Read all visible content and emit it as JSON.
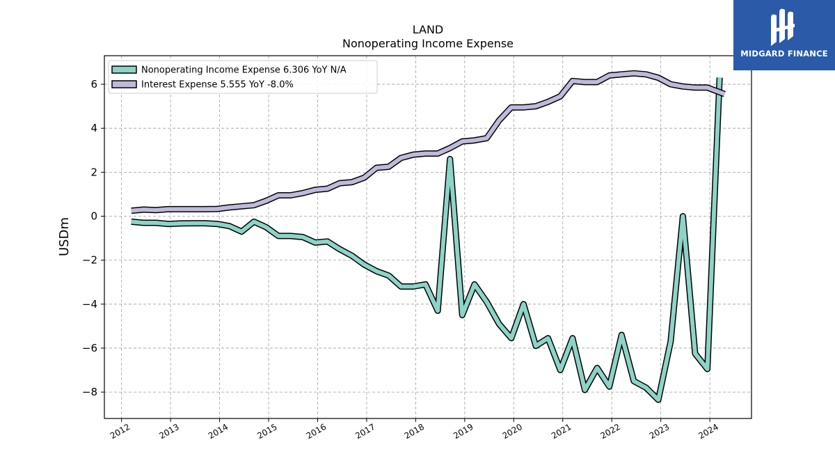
{
  "chart_data": {
    "type": "line",
    "title": "LAND",
    "subtitle": "Nonoperating Income Expense",
    "xlabel": "",
    "ylabel": "USDm",
    "xlim": [
      2011.65,
      2024.85
    ],
    "ylim": [
      -9.2,
      7.3
    ],
    "x_ticks": [
      "2012",
      "2013",
      "2014",
      "2015",
      "2016",
      "2017",
      "2018",
      "2019",
      "2020",
      "2021",
      "2022",
      "2023",
      "2024"
    ],
    "y_ticks": [
      -8,
      -6,
      -4,
      -2,
      0,
      2,
      4,
      6
    ],
    "y_tick_labels": [
      "−8",
      "−6",
      "−4",
      "−2",
      "0",
      "2",
      "4",
      "6"
    ],
    "grid": true,
    "legend_placement": "top-left",
    "series": [
      {
        "name": "Nonoperating Income Expense  6.306 YoY N/A",
        "color": "#8dd3c7",
        "x": [
          2012.2,
          2012.45,
          2012.7,
          2012.95,
          2013.2,
          2013.45,
          2013.7,
          2013.95,
          2014.2,
          2014.45,
          2014.7,
          2014.95,
          2015.2,
          2015.45,
          2015.7,
          2015.95,
          2016.2,
          2016.45,
          2016.7,
          2016.95,
          2017.2,
          2017.45,
          2017.7,
          2017.95,
          2018.2,
          2018.45,
          2018.7,
          2018.95,
          2019.2,
          2019.45,
          2019.7,
          2019.95,
          2020.2,
          2020.45,
          2020.7,
          2020.95,
          2021.2,
          2021.45,
          2021.7,
          2021.95,
          2022.2,
          2022.45,
          2022.7,
          2022.95,
          2023.2,
          2023.45,
          2023.7,
          2023.95,
          2024.2
        ],
        "values": [
          -0.25,
          -0.3,
          -0.3,
          -0.35,
          -0.33,
          -0.32,
          -0.32,
          -0.35,
          -0.45,
          -0.7,
          -0.25,
          -0.5,
          -0.9,
          -0.9,
          -0.95,
          -1.2,
          -1.15,
          -1.5,
          -1.8,
          -2.2,
          -2.5,
          -2.7,
          -3.2,
          -3.2,
          -3.1,
          -4.3,
          2.6,
          -4.5,
          -3.1,
          -3.9,
          -4.9,
          -5.55,
          -4.0,
          -5.9,
          -5.55,
          -7.0,
          -5.55,
          -7.9,
          -6.9,
          -7.75,
          -5.4,
          -7.5,
          -7.8,
          -8.35,
          -5.7,
          0.0,
          -6.25,
          -6.95,
          6.306
        ]
      },
      {
        "name": "Interest Expense  5.555 YoY -8.0%",
        "color": "#bebada",
        "x": [
          2012.2,
          2012.45,
          2012.7,
          2012.95,
          2013.2,
          2013.45,
          2013.7,
          2013.95,
          2014.2,
          2014.45,
          2014.7,
          2014.95,
          2015.2,
          2015.45,
          2015.7,
          2015.95,
          2016.2,
          2016.45,
          2016.7,
          2016.95,
          2017.2,
          2017.45,
          2017.7,
          2017.95,
          2018.2,
          2018.45,
          2018.7,
          2018.95,
          2019.2,
          2019.45,
          2019.7,
          2019.95,
          2020.2,
          2020.45,
          2020.7,
          2020.95,
          2021.2,
          2021.45,
          2021.7,
          2021.95,
          2022.2,
          2022.45,
          2022.7,
          2022.95,
          2023.2,
          2023.45,
          2023.7,
          2023.95,
          2024.3
        ],
        "values": [
          0.25,
          0.3,
          0.28,
          0.32,
          0.32,
          0.32,
          0.32,
          0.33,
          0.4,
          0.45,
          0.5,
          0.7,
          0.95,
          0.95,
          1.05,
          1.2,
          1.25,
          1.5,
          1.55,
          1.75,
          2.2,
          2.25,
          2.65,
          2.8,
          2.85,
          2.85,
          3.1,
          3.4,
          3.45,
          3.55,
          4.35,
          4.95,
          4.95,
          5.0,
          5.2,
          5.45,
          6.15,
          6.1,
          6.1,
          6.4,
          6.45,
          6.5,
          6.45,
          6.3,
          6.0,
          5.9,
          5.85,
          5.85,
          5.555
        ]
      }
    ]
  },
  "logo": {
    "name": "MIDGARD FINANCE",
    "icon": "midgard-logo-icon",
    "background": "#2a5aa8"
  }
}
